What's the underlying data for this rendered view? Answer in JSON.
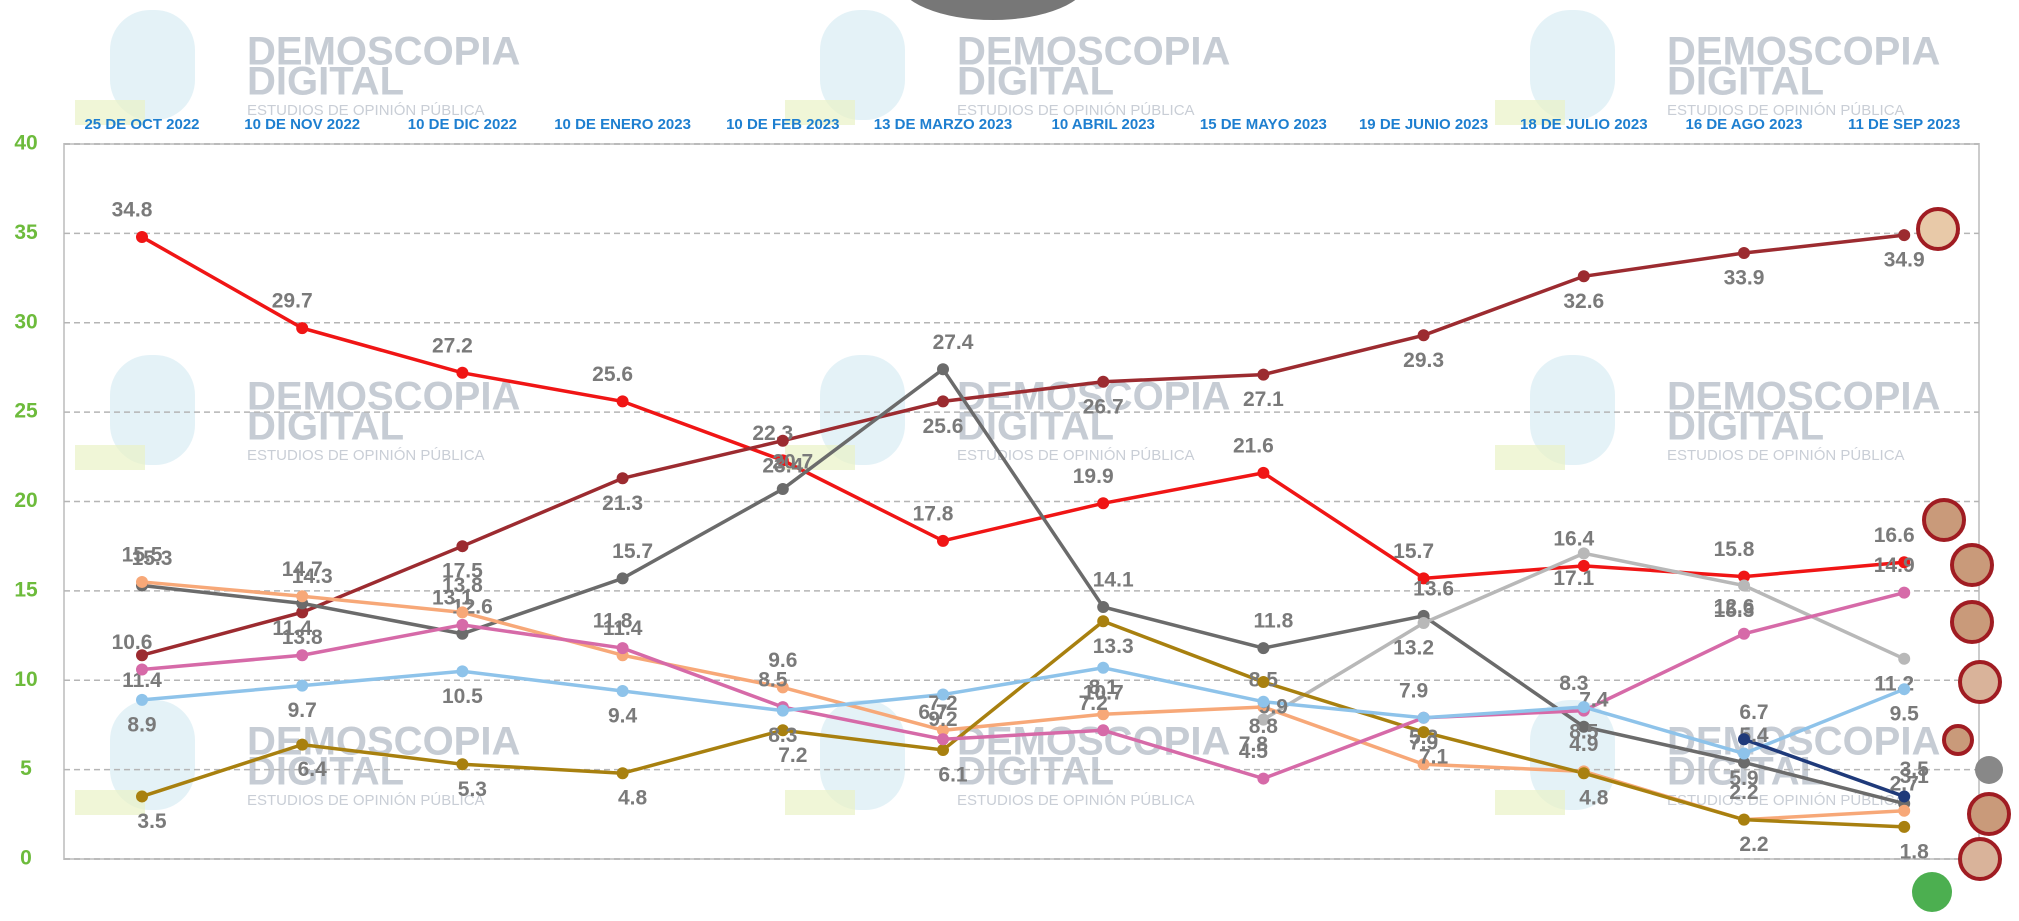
{
  "watermark": {
    "title": "DEMOSCOPIA",
    "line2": "DIGITAL",
    "tagline": "ESTUDIOS DE OPINIÓN PÚBLICA"
  },
  "chart_data": {
    "type": "line",
    "categories": [
      "25 DE OCT 2022",
      "10 DE NOV 2022",
      "10 DE DIC 2022",
      "10 DE ENERO 2023",
      "10 DE FEB 2023",
      "13 DE MARZO 2023",
      "10 ABRIL 2023",
      "15 DE MAYO 2023",
      "19 DE JUNIO 2023",
      "18 DE JULIO 2023",
      "16 DE AGO 2023",
      "11 DE SEP 2023"
    ],
    "ylim": [
      0,
      40
    ],
    "yticks": [
      0,
      5,
      10,
      15,
      20,
      25,
      30,
      35,
      40
    ],
    "grid": true,
    "series": [
      {
        "color": "#f01515",
        "values": [
          34.8,
          29.7,
          27.2,
          25.6,
          22.3,
          17.8,
          19.9,
          21.6,
          15.7,
          16.4,
          15.8,
          16.6
        ]
      },
      {
        "color": "#9c2b30",
        "values": [
          11.4,
          13.8,
          17.5,
          21.3,
          23.4,
          25.6,
          26.7,
          27.1,
          29.3,
          32.6,
          33.9,
          34.9
        ]
      },
      {
        "color": "#6b6b6b",
        "values": [
          15.3,
          14.3,
          12.6,
          15.7,
          20.7,
          27.4,
          14.1,
          11.8,
          13.6,
          7.4,
          5.4,
          3.1
        ]
      },
      {
        "color": "#b8b8b8",
        "values": [
          null,
          null,
          null,
          null,
          null,
          null,
          null,
          7.8,
          13.2,
          17.1,
          15.3,
          11.2
        ]
      },
      {
        "color": "#f7a878",
        "values": [
          15.5,
          14.7,
          13.8,
          11.4,
          9.6,
          7.2,
          8.1,
          8.5,
          5.3,
          4.9,
          2.2,
          2.7
        ]
      },
      {
        "color": "#a8800f",
        "values": [
          3.5,
          6.4,
          5.3,
          4.8,
          7.2,
          6.1,
          13.3,
          9.9,
          7.1,
          4.8,
          2.2,
          1.8
        ]
      },
      {
        "color": "#d66aa8",
        "values": [
          10.6,
          11.4,
          13.1,
          11.8,
          8.5,
          6.7,
          7.2,
          4.5,
          7.9,
          8.3,
          12.6,
          14.9
        ]
      },
      {
        "color": "#8ec3ea",
        "values": [
          8.9,
          9.7,
          10.5,
          9.4,
          8.3,
          9.2,
          10.7,
          8.8,
          7.9,
          8.5,
          5.9,
          9.5
        ]
      },
      {
        "color": "#1f3a7a",
        "values": [
          null,
          null,
          null,
          null,
          null,
          null,
          null,
          null,
          null,
          null,
          6.7,
          3.5
        ]
      }
    ]
  }
}
